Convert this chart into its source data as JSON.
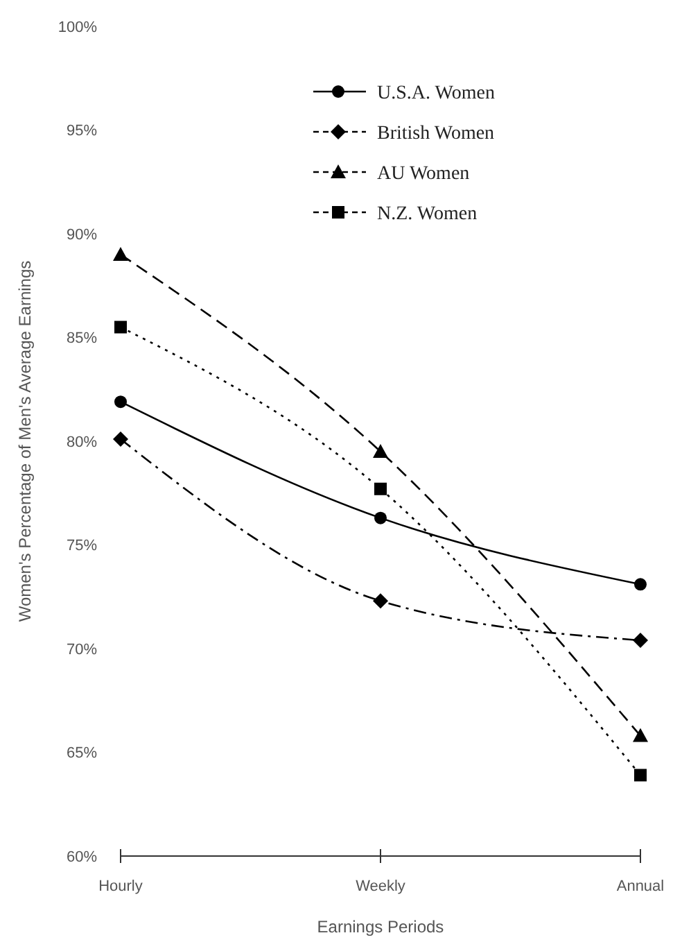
{
  "chart_data": {
    "type": "line",
    "xlabel": "Earnings Periods",
    "ylabel": "Women's Percentage of Men's Average Earnings",
    "categories": [
      "Hourly",
      "Weekly",
      "Annual"
    ],
    "ylim": [
      60,
      100
    ],
    "yticks": [
      {
        "value": 60,
        "label": "60%"
      },
      {
        "value": 65,
        "label": "65%"
      },
      {
        "value": 70,
        "label": "70%"
      },
      {
        "value": 75,
        "label": "75%"
      },
      {
        "value": 80,
        "label": "80%"
      },
      {
        "value": 85,
        "label": "85%"
      },
      {
        "value": 90,
        "label": "90%"
      },
      {
        "value": 95,
        "label": "95%"
      },
      {
        "value": 100,
        "label": "100%"
      }
    ],
    "grid": false,
    "legend": "top",
    "series": [
      {
        "name": "U.S.A. Women",
        "color": "#000000",
        "marker": "circle",
        "line_style": "solid",
        "values": [
          81.9,
          76.3,
          73.1
        ]
      },
      {
        "name": "British Women",
        "color": "#000000",
        "marker": "diamond",
        "line_style": "dashdot",
        "values": [
          80.1,
          72.3,
          70.4
        ]
      },
      {
        "name": "AU Women",
        "color": "#000000",
        "marker": "triangle",
        "line_style": "dashed",
        "values": [
          89.0,
          79.5,
          65.8
        ]
      },
      {
        "name": "N.Z. Women",
        "color": "#000000",
        "marker": "square",
        "line_style": "dotted",
        "values": [
          85.5,
          77.7,
          63.9
        ]
      }
    ]
  }
}
